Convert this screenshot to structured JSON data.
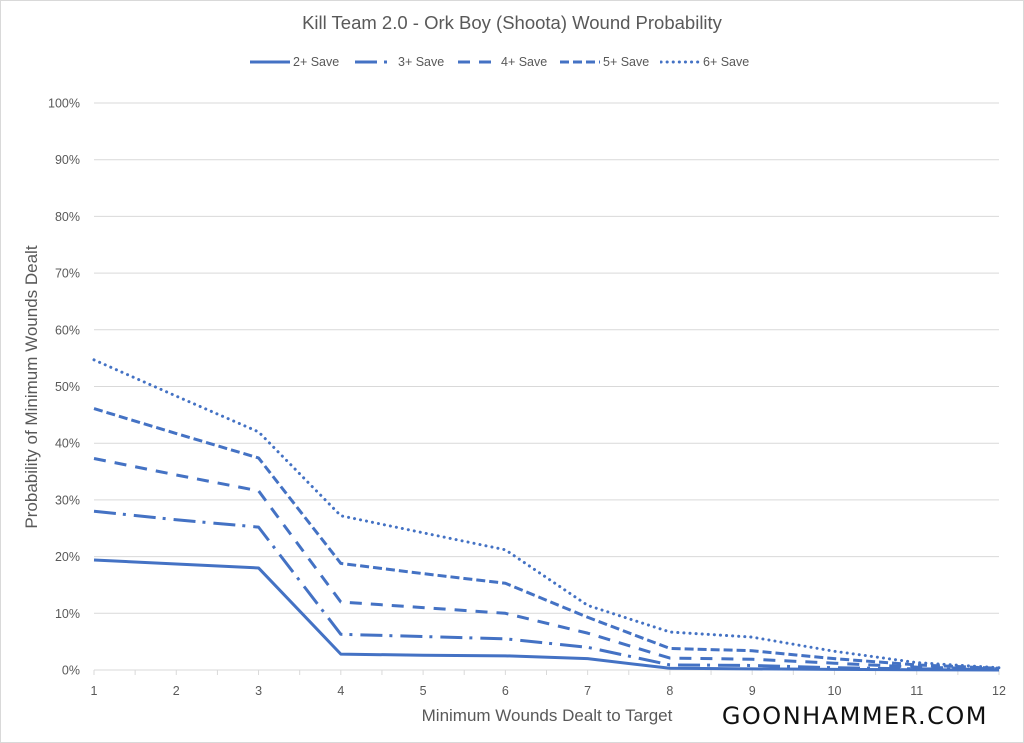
{
  "chart_data": {
    "type": "line",
    "title": "Kill Team 2.0 - Ork Boy (Shoota) Wound Probability",
    "xlabel": "Minimum Wounds Dealt to Target",
    "ylabel": "Probability of Minimum Wounds Dealt",
    "x": [
      1,
      2,
      3,
      4,
      5,
      6,
      7,
      8,
      9,
      10,
      11,
      12
    ],
    "xlim": [
      1,
      12
    ],
    "ylim": [
      0,
      100
    ],
    "y_ticks": [
      0,
      10,
      20,
      30,
      40,
      50,
      60,
      70,
      80,
      90,
      100
    ],
    "y_tick_labels": [
      "0%",
      "10%",
      "20%",
      "30%",
      "40%",
      "50%",
      "60%",
      "70%",
      "80%",
      "90%",
      "100%"
    ],
    "x_tick_labels": [
      "1",
      "2",
      "3",
      "4",
      "5",
      "6",
      "7",
      "8",
      "9",
      "10",
      "11",
      "12"
    ],
    "grid": true,
    "legend_position": "top",
    "series": [
      {
        "name": "2+ Save",
        "dash": "solid",
        "values": [
          19.4,
          18.7,
          18.0,
          2.8,
          2.6,
          2.5,
          2.0,
          0.3,
          0.2,
          0.1,
          0.05,
          0.0
        ]
      },
      {
        "name": "3+ Save",
        "dash": "long-dash-dot",
        "values": [
          28.0,
          26.5,
          25.2,
          6.3,
          5.9,
          5.5,
          4.0,
          0.9,
          0.8,
          0.4,
          0.2,
          0.1
        ]
      },
      {
        "name": "4+ Save",
        "dash": "dash",
        "values": [
          37.3,
          34.4,
          31.6,
          12.0,
          11.0,
          10.0,
          6.5,
          2.1,
          1.9,
          1.2,
          0.5,
          0.2
        ]
      },
      {
        "name": "5+ Save",
        "dash": "short-dash",
        "values": [
          46.1,
          41.7,
          37.4,
          18.8,
          17.0,
          15.3,
          9.3,
          3.8,
          3.4,
          2.0,
          0.9,
          0.3
        ]
      },
      {
        "name": "6+ Save",
        "dash": "dot",
        "values": [
          54.7,
          48.3,
          42.0,
          27.2,
          24.2,
          21.2,
          11.4,
          6.7,
          5.8,
          3.3,
          1.3,
          0.4
        ]
      }
    ],
    "colors": {
      "series": "#4472c4",
      "grid": "#d9d9d9",
      "text": "#595959"
    }
  },
  "watermark": "GOONHAMMER.COM"
}
